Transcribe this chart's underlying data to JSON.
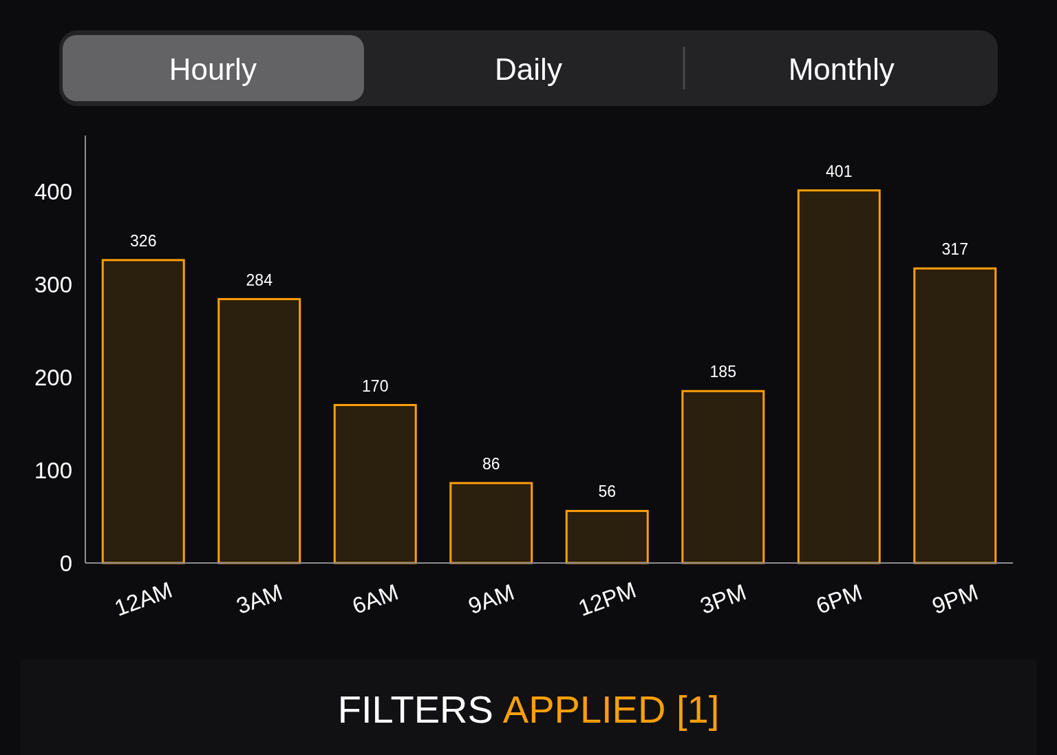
{
  "chart_data": {
    "type": "bar",
    "categories": [
      "12AM",
      "3AM",
      "6AM",
      "9AM",
      "12PM",
      "3PM",
      "6PM",
      "9PM"
    ],
    "values": [
      326,
      284,
      170,
      86,
      56,
      185,
      401,
      317
    ],
    "color": "#ff9f0a",
    "ylim": [
      0,
      460
    ],
    "yticks": [
      0,
      100,
      200,
      300,
      400
    ],
    "data_labels": true,
    "annotations": [
      "Hourly",
      "Daily",
      "Monthly",
      "FILTERS",
      "APPLIED [1]"
    ]
  }
}
